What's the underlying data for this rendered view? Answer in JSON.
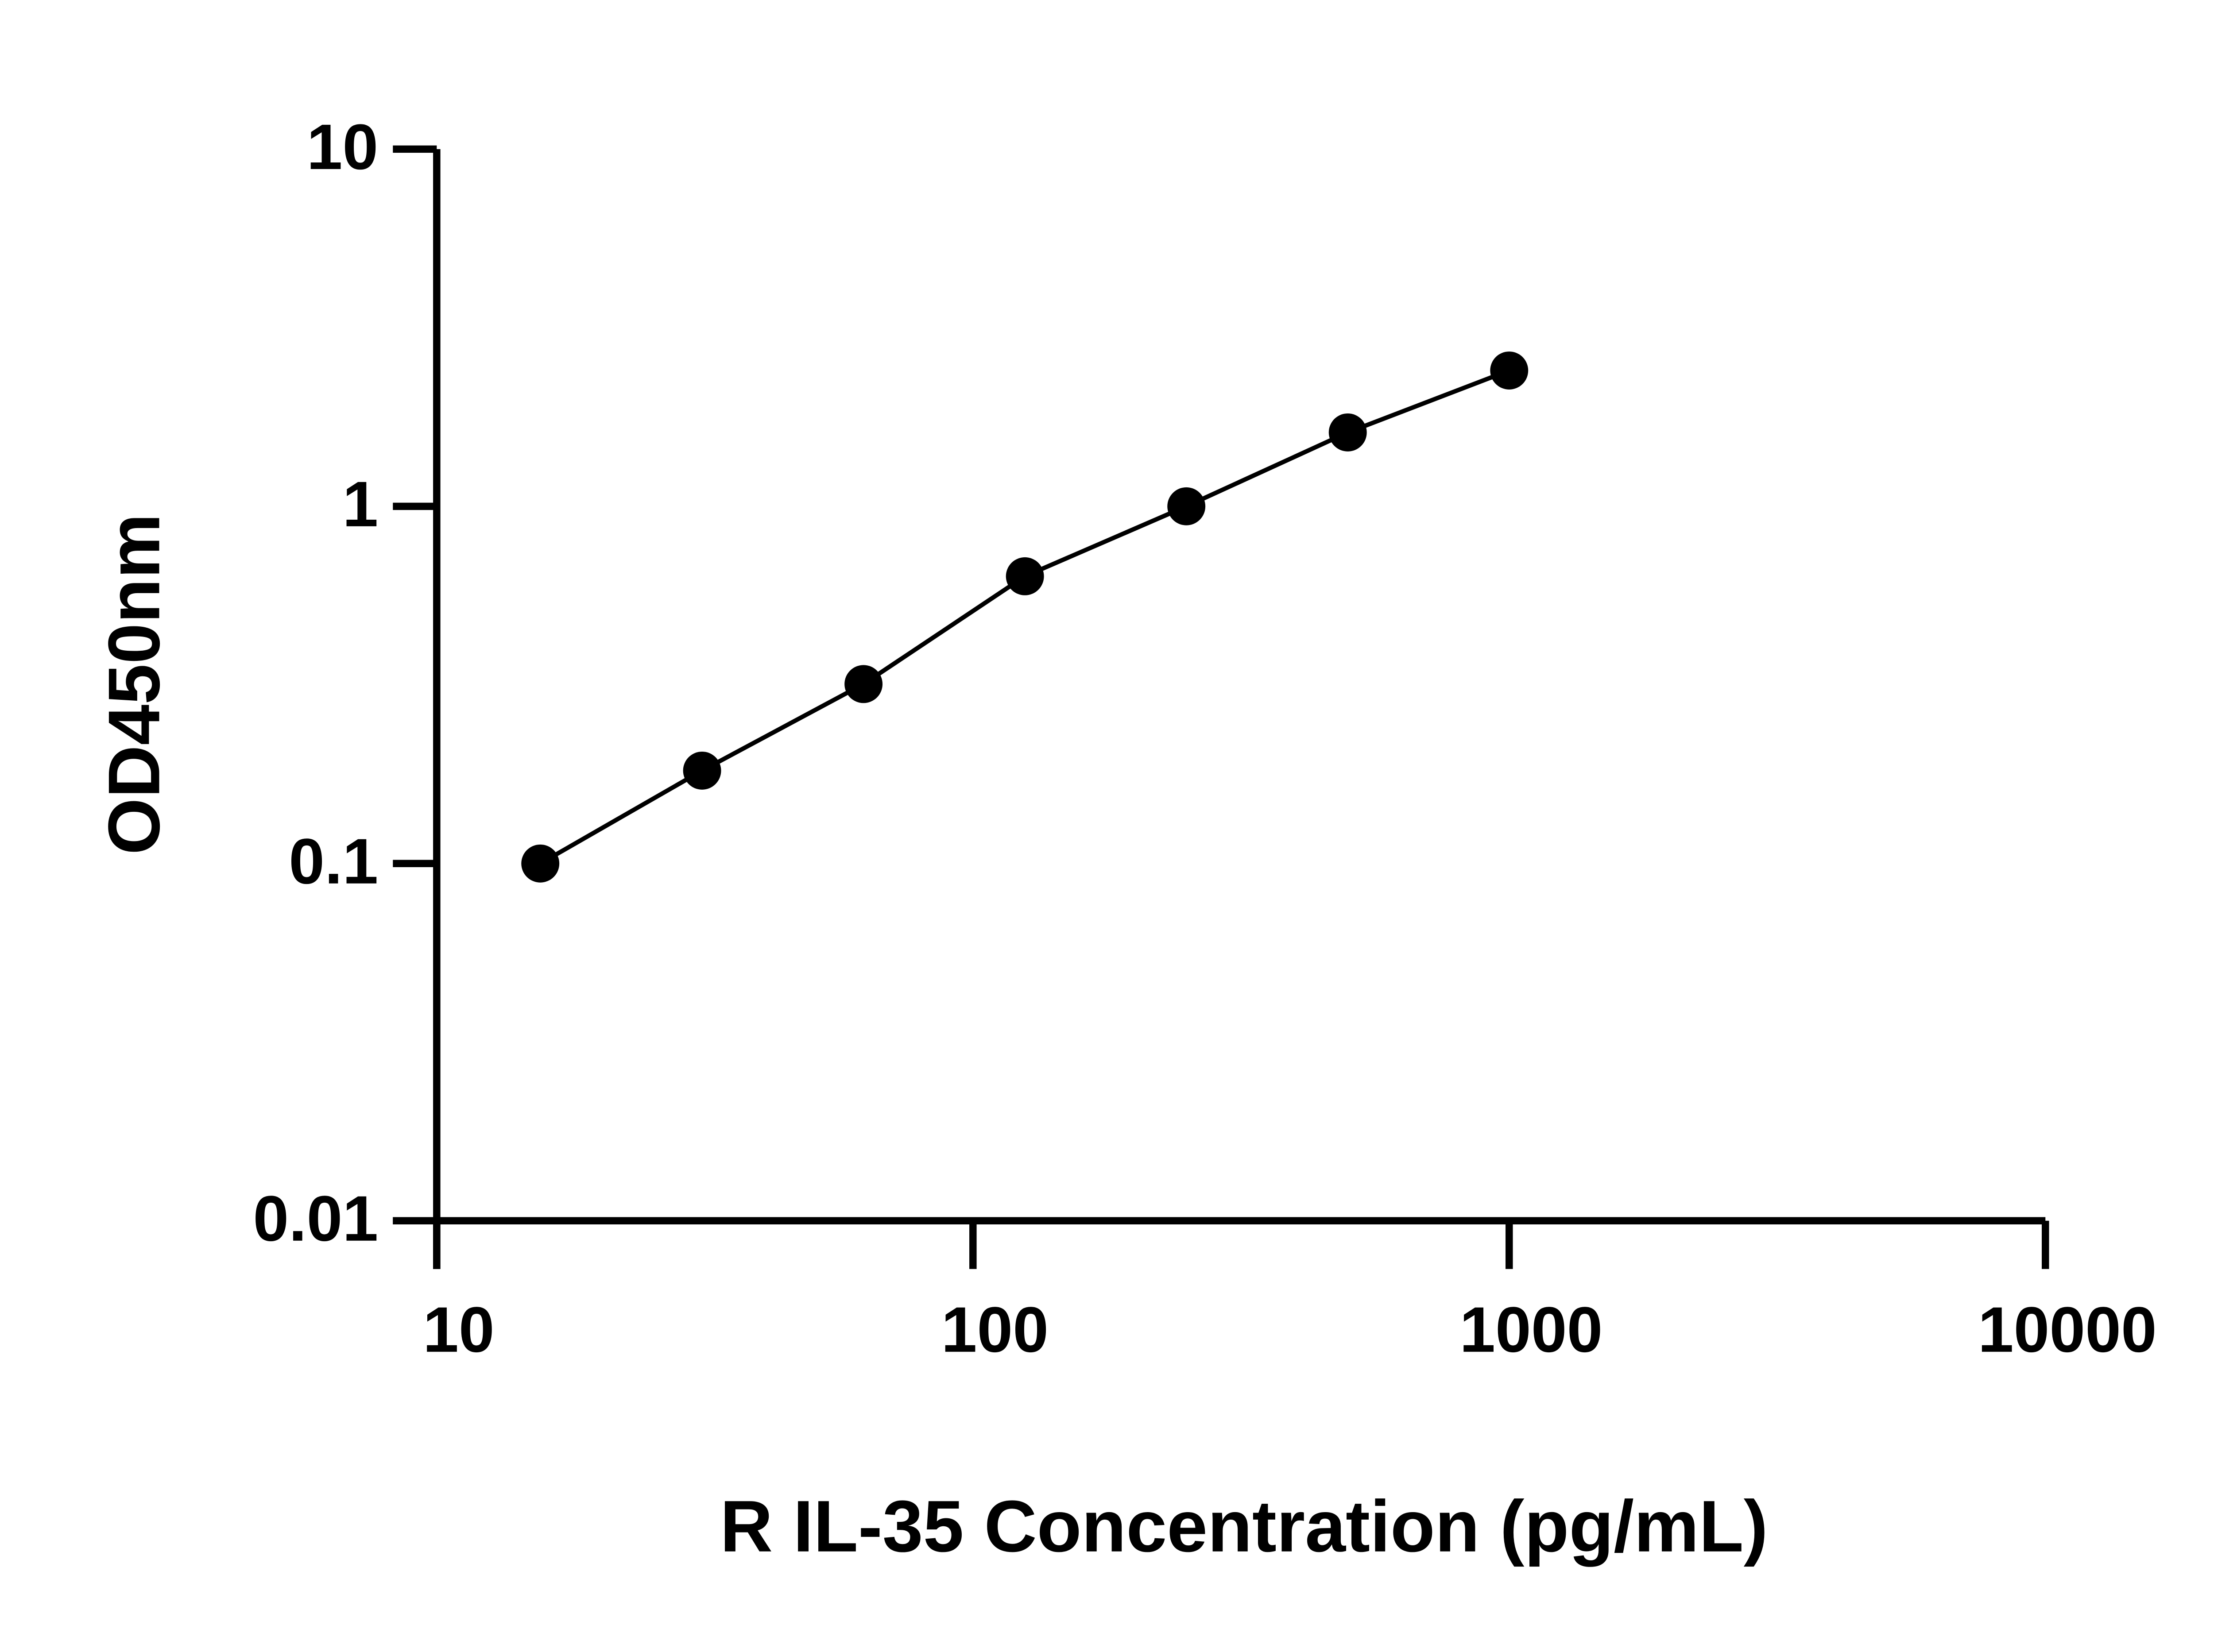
{
  "chart_data": {
    "type": "scatter",
    "x_label": "R IL-35 Concentration (pg/mL)",
    "y_label": "OD450nm",
    "x": [
      15.6,
      31.25,
      62.5,
      125,
      250,
      500,
      1000
    ],
    "series": [
      {
        "name": "OD450nm",
        "color": "#000000",
        "values": [
          0.1,
          0.182,
          0.318,
          0.637,
          1.0,
          1.61,
          2.4
        ]
      }
    ],
    "x_log": true,
    "y_log": true,
    "xlim": [
      10,
      10000
    ],
    "ylim": [
      0.01,
      10
    ],
    "xticks": [
      10,
      100,
      1000,
      10000
    ],
    "yticks": [
      0.01,
      0.1,
      1,
      10
    ],
    "fit_line": true
  }
}
